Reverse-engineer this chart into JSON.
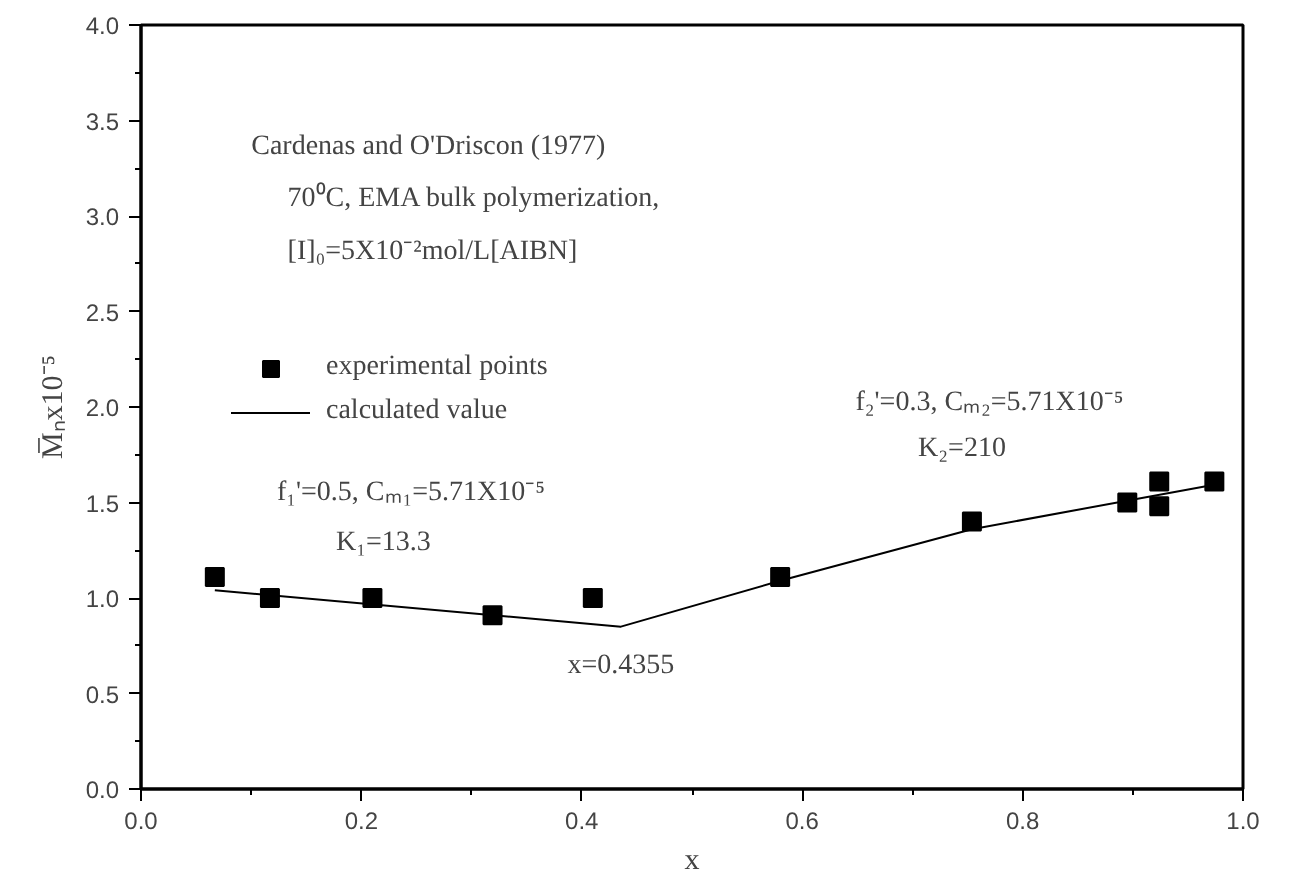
{
  "chart_data": {
    "type": "scatter",
    "xlabel": "x",
    "ylabel": "M̅ₙx10⁻⁵",
    "xlim": [
      0.0,
      1.0
    ],
    "xticks": [
      {
        "value": 0.0,
        "label": "0.0"
      },
      0.2,
      0.4,
      0.6,
      0.8,
      {
        "value": 1.0,
        "label": "1.0"
      }
    ],
    "ylim": [
      0.0,
      4.0
    ],
    "yticks": [
      {
        "value": 0.0,
        "label": "0.0"
      },
      0.5,
      {
        "value": 1.0,
        "label": "1.0"
      },
      1.5,
      {
        "value": 2.0,
        "label": "2.0"
      },
      2.5,
      {
        "value": 3.0,
        "label": "3.0"
      },
      3.5,
      {
        "value": 4.0,
        "label": "4.0"
      }
    ],
    "grid": false,
    "legend": "left",
    "marker": "square",
    "series": [
      {
        "name": "experimental points",
        "color": "#000000",
        "x": [
          0.067,
          0.117,
          0.21,
          0.319,
          0.41,
          0.58,
          0.754,
          0.895,
          0.924,
          0.924,
          0.974
        ],
        "values": [
          1.11,
          1.0,
          1.0,
          0.91,
          1.0,
          1.11,
          1.4,
          1.5,
          1.61,
          1.48,
          1.61
        ]
      },
      {
        "name": "calculated value",
        "type": "line",
        "marker": "none",
        "line_style": "solid",
        "color": "#000000",
        "x": [
          0.067,
          0.4355,
          0.58,
          0.754,
          0.98
        ],
        "values": [
          1.04,
          0.85,
          1.09,
          1.36,
          1.6
        ]
      }
    ],
    "annotations": [
      "Cardenas and O'Driscon (1977)",
      "70⁰C, EMA bulk polymerization,",
      "[I]₀=5X10⁻²mol/L[AIBN]",
      "f₁'=0.5, Cₘ₁=5.71X10⁻⁵",
      "K₁=13.3",
      "f₂'=0.3, Cₘ₂=5.71X10⁻⁵",
      "K₂=210",
      {
        "text": "x=0.4355",
        "x": 0.4355,
        "y": 0.85
      }
    ]
  }
}
